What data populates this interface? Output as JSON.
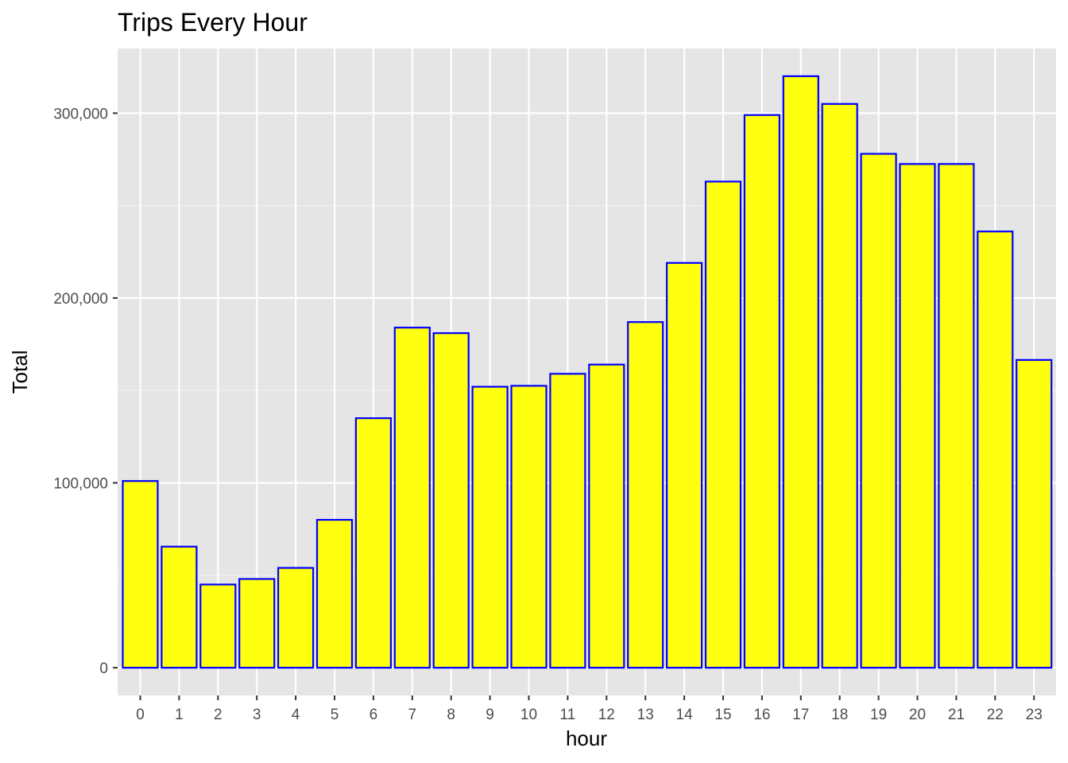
{
  "chart_data": {
    "type": "bar",
    "title": "Trips Every Hour",
    "xlabel": "hour",
    "ylabel": "Total",
    "categories": [
      "0",
      "1",
      "2",
      "3",
      "4",
      "5",
      "6",
      "7",
      "8",
      "9",
      "10",
      "11",
      "12",
      "13",
      "14",
      "15",
      "16",
      "17",
      "18",
      "19",
      "20",
      "21",
      "22",
      "23"
    ],
    "values": [
      101000,
      65500,
      45000,
      48000,
      54000,
      80000,
      135000,
      184000,
      181000,
      152000,
      152500,
      159000,
      164000,
      187000,
      219000,
      263000,
      299000,
      320000,
      305000,
      278000,
      272500,
      272500,
      236000,
      166500
    ],
    "ylim": [
      -15000,
      335000
    ],
    "yticks": [
      0,
      100000,
      200000,
      300000
    ],
    "ytick_labels": [
      "0",
      "100,000",
      "200,000",
      "300,000"
    ],
    "grid": true,
    "colors": {
      "bar_fill": "#ffff10",
      "bar_stroke": "#0000ff",
      "panel_background": "#e5e5e5",
      "grid_major": "#ffffff",
      "grid_minor": "#f2f2f2",
      "tick_text": "#4d4d4d",
      "tick_mark": "#333333"
    }
  }
}
